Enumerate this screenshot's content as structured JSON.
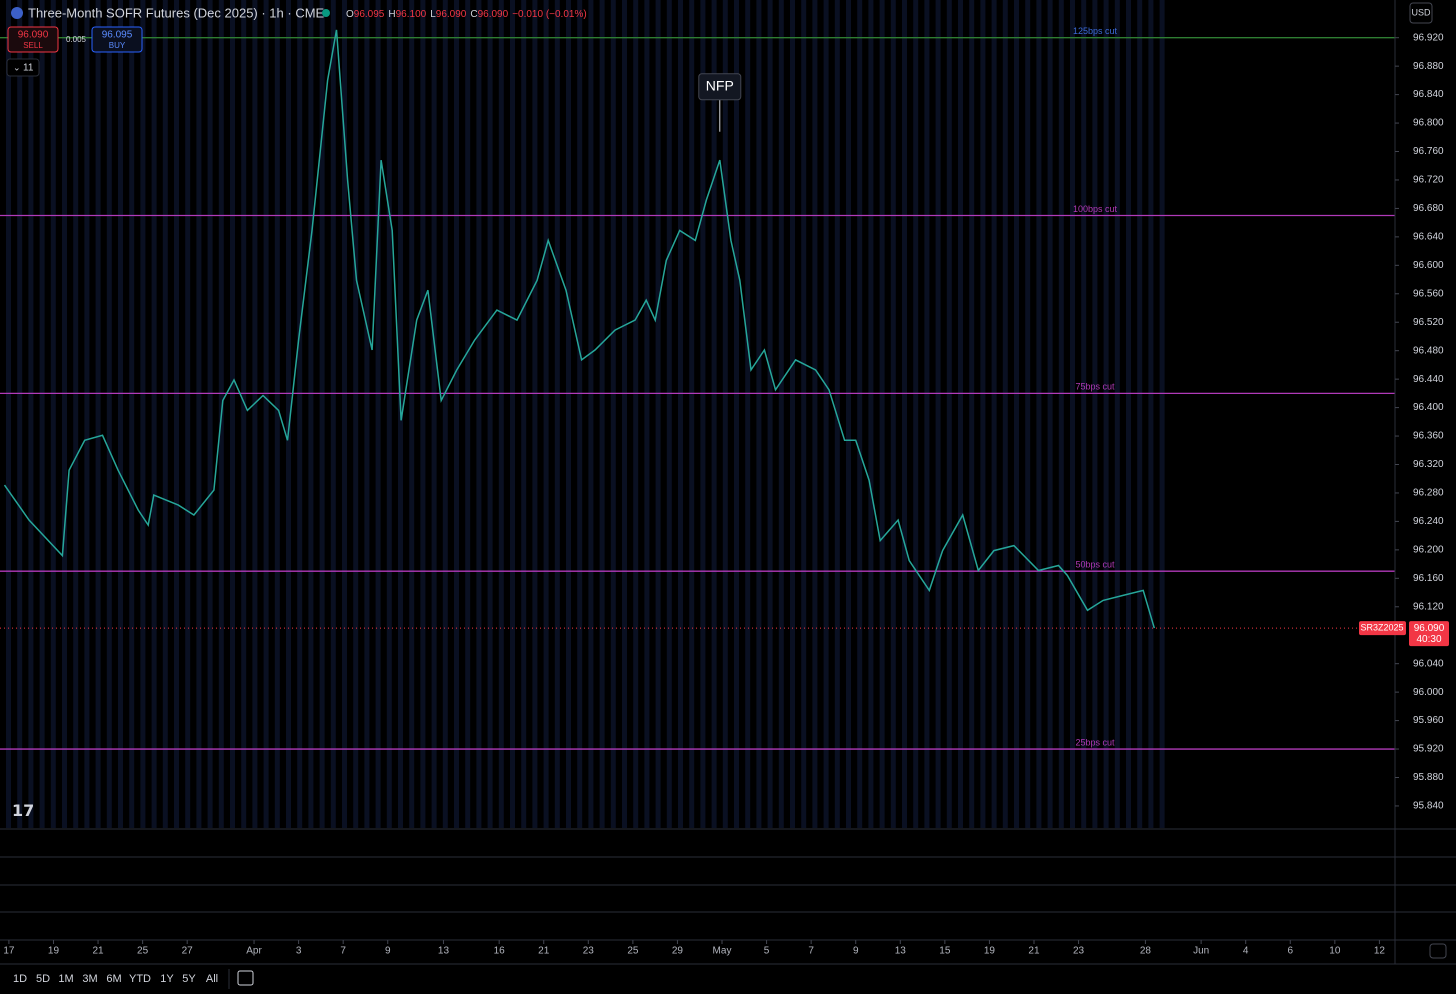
{
  "header": {
    "symbol": "Three-Month SOFR Futures (Dec 2025) · 1h · CME",
    "ohlc": [
      {
        "key": "O",
        "value": "96.095"
      },
      {
        "key": "H",
        "value": "96.100"
      },
      {
        "key": "L",
        "value": "96.090"
      },
      {
        "key": "C",
        "value": "96.090"
      }
    ],
    "change": "−0.010 (−0.01%)"
  },
  "trade": {
    "sell_price": "96.090",
    "sell_label": "SELL",
    "spread": "0.005",
    "buy_price": "96.095",
    "buy_label": "BUY"
  },
  "indicators_count": "11",
  "currency": "USD",
  "chart_data": {
    "type": "line",
    "x": [
      -0.2,
      0.9,
      2.4,
      2.7,
      3.4,
      4.2,
      4.9,
      5.8,
      6.25,
      6.5,
      7.6,
      8.3,
      9.2,
      9.6,
      10.1,
      10.7,
      11.4,
      12.1,
      12.5,
      13.0,
      13.6,
      14.3,
      14.7,
      15.2,
      15.6,
      16.3,
      16.7,
      17.2,
      17.6,
      18.3,
      18.8,
      19.4,
      20.1,
      20.9,
      21.9,
      22.8,
      23.7,
      24.2,
      25.0,
      25.7,
      26.3,
      27.2,
      28.1,
      28.6,
      29.0,
      29.5,
      30.1,
      30.8,
      31.3,
      31.9,
      32.4,
      32.8,
      33.3,
      33.9,
      34.4,
      35.3,
      36.2,
      36.8,
      37.5,
      38.0,
      38.6,
      39.1,
      39.9,
      40.4,
      41.3,
      41.9,
      42.8,
      43.5,
      44.2,
      45.1,
      46.2,
      47.1,
      47.5,
      48.4,
      49.1,
      50.0,
      50.9,
      51.4
    ],
    "series": [
      {
        "name": "SR3Z2025",
        "color": "#26a69a",
        "values": [
          96.291,
          96.242,
          96.192,
          96.312,
          96.354,
          96.361,
          96.312,
          96.256,
          96.235,
          96.277,
          96.263,
          96.249,
          96.284,
          96.41,
          96.439,
          96.396,
          96.417,
          96.396,
          96.354,
          96.495,
          96.649,
          96.86,
          96.931,
          96.72,
          96.579,
          96.481,
          96.748,
          96.649,
          96.382,
          96.523,
          96.565,
          96.41,
          96.453,
          96.495,
          96.537,
          96.523,
          96.579,
          96.635,
          96.565,
          96.467,
          96.481,
          96.509,
          96.523,
          96.551,
          96.523,
          96.607,
          96.649,
          96.635,
          96.692,
          96.748,
          96.635,
          96.579,
          96.453,
          96.481,
          96.425,
          96.467,
          96.453,
          96.425,
          96.354,
          96.354,
          96.298,
          96.213,
          96.242,
          96.185,
          96.143,
          96.199,
          96.249,
          96.171,
          96.199,
          96.206,
          96.171,
          96.178,
          96.164,
          96.115,
          96.129,
          96.136,
          96.143,
          96.09
        ]
      }
    ],
    "xlim": [
      -0.4,
      62.2
    ],
    "xticks": [
      {
        "value": 0,
        "label": "17"
      },
      {
        "value": 2,
        "label": "19"
      },
      {
        "value": 4,
        "label": "21"
      },
      {
        "value": 6,
        "label": "25"
      },
      {
        "value": 8,
        "label": "27"
      },
      {
        "value": 11,
        "label": "Apr"
      },
      {
        "value": 13,
        "label": "3"
      },
      {
        "value": 15,
        "label": "7"
      },
      {
        "value": 17,
        "label": "9"
      },
      {
        "value": 19.5,
        "label": "13"
      },
      {
        "value": 22,
        "label": "16"
      },
      {
        "value": 24,
        "label": "21"
      },
      {
        "value": 26,
        "label": "23"
      },
      {
        "value": 28,
        "label": "25"
      },
      {
        "value": 30,
        "label": "29"
      },
      {
        "value": 32,
        "label": "May"
      },
      {
        "value": 34,
        "label": "5"
      },
      {
        "value": 36,
        "label": "7"
      },
      {
        "value": 38,
        "label": "9"
      },
      {
        "value": 40,
        "label": "13"
      },
      {
        "value": 42,
        "label": "15"
      },
      {
        "value": 44,
        "label": "19"
      },
      {
        "value": 46,
        "label": "21"
      },
      {
        "value": 48,
        "label": "23"
      },
      {
        "value": 51,
        "label": "28"
      },
      {
        "value": 53.5,
        "label": "Jun"
      },
      {
        "value": 55.5,
        "label": "4"
      },
      {
        "value": 57.5,
        "label": "6"
      },
      {
        "value": 59.5,
        "label": "10"
      },
      {
        "value": 61.5,
        "label": "12"
      }
    ],
    "ylim": [
      95.809,
      96.973
    ],
    "yticks": [
      {
        "value": 95.84,
        "label": "95.840"
      },
      {
        "value": 95.88,
        "label": "95.880"
      },
      {
        "value": 95.92,
        "label": "95.920"
      },
      {
        "value": 95.96,
        "label": "95.960"
      },
      {
        "value": 96.0,
        "label": "96.000"
      },
      {
        "value": 96.04,
        "label": "96.040"
      },
      {
        "value": 96.12,
        "label": "96.120"
      },
      {
        "value": 96.16,
        "label": "96.160"
      },
      {
        "value": 96.2,
        "label": "96.200"
      },
      {
        "value": 96.24,
        "label": "96.240"
      },
      {
        "value": 96.28,
        "label": "96.280"
      },
      {
        "value": 96.32,
        "label": "96.320"
      },
      {
        "value": 96.36,
        "label": "96.360"
      },
      {
        "value": 96.4,
        "label": "96.400"
      },
      {
        "value": 96.44,
        "label": "96.440"
      },
      {
        "value": 96.48,
        "label": "96.480"
      },
      {
        "value": 96.52,
        "label": "96.520"
      },
      {
        "value": 96.56,
        "label": "96.560"
      },
      {
        "value": 96.6,
        "label": "96.600"
      },
      {
        "value": 96.64,
        "label": "96.640"
      },
      {
        "value": 96.68,
        "label": "96.680"
      },
      {
        "value": 96.72,
        "label": "96.720"
      },
      {
        "value": 96.76,
        "label": "96.760"
      },
      {
        "value": 96.8,
        "label": "96.800"
      },
      {
        "value": 96.84,
        "label": "96.840"
      },
      {
        "value": 96.88,
        "label": "96.880"
      },
      {
        "value": 96.92,
        "label": "96.920"
      }
    ],
    "levels": [
      {
        "label": "125bps cut",
        "value": 96.92,
        "color": "#2e7d32"
      },
      {
        "label": "100bps cut",
        "value": 96.67,
        "color": "#b03ab8"
      },
      {
        "label": "75bps cut",
        "value": 96.42,
        "color": "#b03ab8"
      },
      {
        "label": "50bps cut",
        "value": 96.17,
        "color": "#b03ab8"
      },
      {
        "label": "25bps cut",
        "value": 95.92,
        "color": "#b03ab8"
      }
    ],
    "last_price": {
      "value": 96.09,
      "label": "96.090",
      "countdown": "40:30",
      "color": "#f23645"
    },
    "annotations": [
      {
        "text": "NFP",
        "x": 31.9,
        "y": 96.83
      }
    ]
  },
  "timeframes": [
    "1D",
    "5D",
    "1M",
    "3M",
    "6M",
    "YTD",
    "1Y",
    "5Y",
    "All"
  ]
}
